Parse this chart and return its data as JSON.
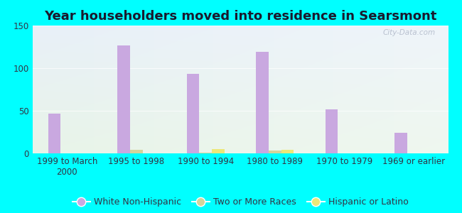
{
  "title": "Year householders moved into residence in Searsmont",
  "categories": [
    "1999 to March\n2000",
    "1995 to 1998",
    "1990 to 1994",
    "1980 to 1989",
    "1970 to 1979",
    "1969 or earlier"
  ],
  "series": [
    {
      "name": "White Non-Hispanic",
      "color": "#c9a8e0",
      "values": [
        47,
        127,
        93,
        119,
        52,
        24
      ]
    },
    {
      "name": "Two or More Races",
      "color": "#d4d49a",
      "values": [
        0,
        4,
        1,
        3,
        0,
        0
      ]
    },
    {
      "name": "Hispanic or Latino",
      "color": "#ece878",
      "values": [
        0,
        0,
        5,
        4,
        0,
        0
      ]
    }
  ],
  "ylim": [
    0,
    150
  ],
  "yticks": [
    0,
    50,
    100,
    150
  ],
  "bar_width": 0.18,
  "background_color": "#00ffff",
  "grid_color": "#e0e8e0",
  "title_color": "#1a1a2e",
  "title_fontsize": 13,
  "tick_fontsize": 8.5,
  "legend_fontsize": 9,
  "watermark": "City-Data.com"
}
